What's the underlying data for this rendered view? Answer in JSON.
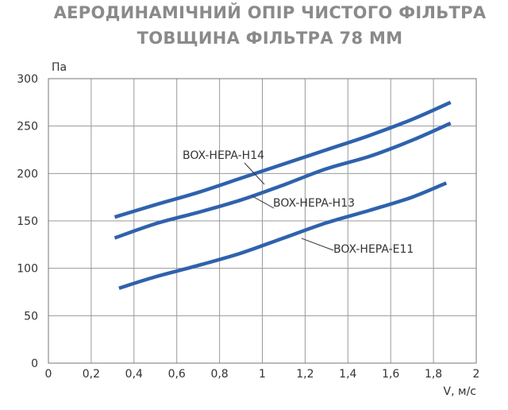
{
  "header": {
    "title_line1": "АЕРОДИНАМІЧНИЙ ОПІР ЧИСТОГО ФІЛЬТРА",
    "title_line2": "ТОВЩИНА ФІЛЬТРА 78 ММ"
  },
  "chart_data": {
    "type": "line",
    "title": "АЕРОДИНАМІЧНИЙ ОПІР ЧИСТОГО ФІЛЬТРА",
    "subtitle": "ТОВЩИНА ФІЛЬТРА 78 ММ",
    "xlabel": "V, м/с",
    "ylabel": "Па",
    "xlim": [
      0,
      2
    ],
    "ylim": [
      0,
      300
    ],
    "x_ticks": [
      "0",
      "0,2",
      "0,4",
      "0,6",
      "0,8",
      "1",
      "1,2",
      "1,4",
      "1,6",
      "1,8",
      "2"
    ],
    "y_ticks": [
      "0",
      "50",
      "100",
      "150",
      "200",
      "250",
      "300"
    ],
    "grid": true,
    "line_color": "#2f62ad",
    "series": [
      {
        "name": "BOX-HEPA-H14",
        "points": [
          [
            0.31,
            154
          ],
          [
            0.5,
            167
          ],
          [
            0.7,
            180
          ],
          [
            0.9,
            195
          ],
          [
            1.1,
            210
          ],
          [
            1.3,
            225
          ],
          [
            1.5,
            240
          ],
          [
            1.7,
            257
          ],
          [
            1.88,
            275
          ]
        ]
      },
      {
        "name": "BOX-HEPA-H13",
        "points": [
          [
            0.31,
            132
          ],
          [
            0.5,
            147
          ],
          [
            0.7,
            159
          ],
          [
            0.9,
            172
          ],
          [
            1.1,
            188
          ],
          [
            1.3,
            205
          ],
          [
            1.5,
            218
          ],
          [
            1.7,
            235
          ],
          [
            1.88,
            253
          ]
        ]
      },
      {
        "name": "BOX-HEPA-E11",
        "points": [
          [
            0.33,
            79
          ],
          [
            0.5,
            91
          ],
          [
            0.7,
            103
          ],
          [
            0.9,
            116
          ],
          [
            1.1,
            132
          ],
          [
            1.3,
            148
          ],
          [
            1.5,
            161
          ],
          [
            1.7,
            175
          ],
          [
            1.86,
            190
          ]
        ]
      }
    ]
  }
}
